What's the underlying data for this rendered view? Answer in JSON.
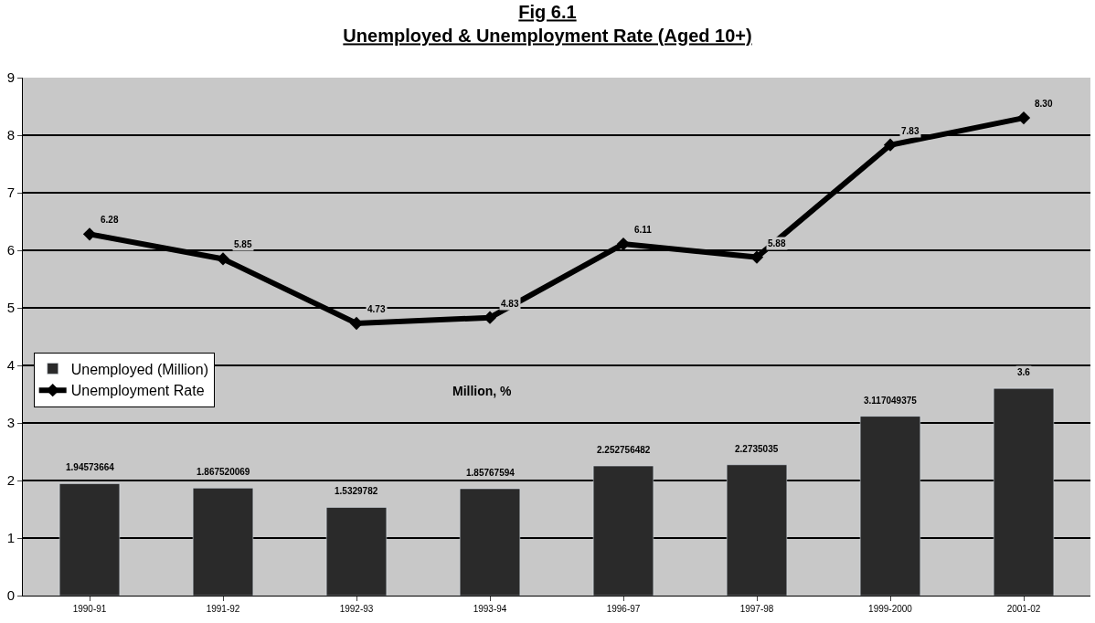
{
  "chart_data": {
    "type": "bar",
    "title": "Fig 6.1",
    "subtitle": "Unemployed & Unemployment Rate (Aged 10+)",
    "categories": [
      "1990-91",
      "1991-92",
      "1992-93",
      "1993-94",
      "1996-97",
      "1997-98",
      "1999-2000",
      "2001-02"
    ],
    "series": [
      {
        "name": "Unemployed (Million)",
        "color": "#2a2a2a",
        "values": [
          1.94573664,
          1.867520069,
          1.5329782,
          1.85767594,
          2.252756482,
          2.2735035,
          3.117049375,
          3.6
        ],
        "value_labels": [
          "1.94573664",
          "1.867520069",
          "1.5329782",
          "1.85767594",
          "2.252756482",
          "2.2735035",
          "3.117049375",
          "3.6"
        ]
      },
      {
        "name": "Unemployment Rate",
        "type": "line",
        "color": "#000000",
        "marker": "diamond",
        "values": [
          6.28,
          5.85,
          4.73,
          4.83,
          6.11,
          5.88,
          7.83,
          8.3
        ],
        "value_labels": [
          "6.28",
          "5.85",
          "4.73",
          "4.83",
          "6.11",
          "5.88",
          "7.83",
          "8.30"
        ]
      }
    ],
    "annotations": [
      "Million, %"
    ],
    "ylim": [
      0,
      9
    ],
    "yticks": [
      0,
      1,
      2,
      3,
      4,
      5,
      6,
      7,
      8,
      9
    ],
    "grid": "y",
    "legend": "left"
  }
}
